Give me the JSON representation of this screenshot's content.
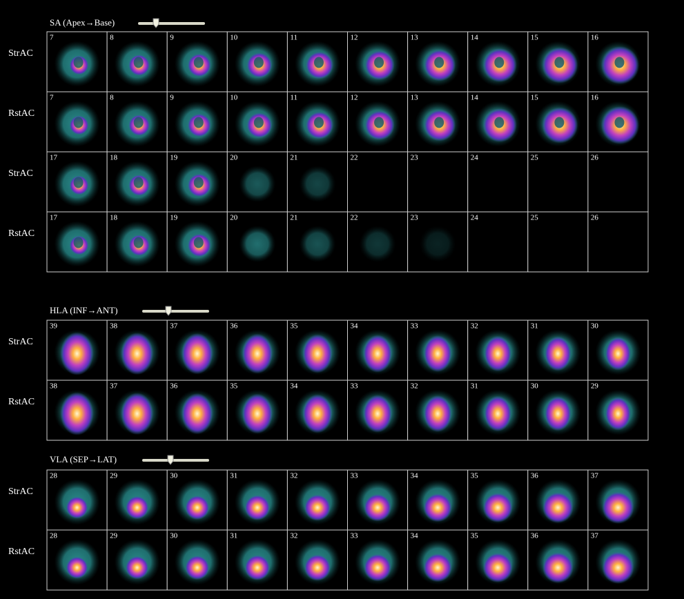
{
  "sections": [
    {
      "title": "SA (Apex→Base)",
      "rows": [
        {
          "label": "StrAC",
          "cells": [
            "7",
            "8",
            "9",
            "10",
            "11",
            "12",
            "13",
            "14",
            "15",
            "16"
          ]
        },
        {
          "label": "RstAC",
          "cells": [
            "7",
            "8",
            "9",
            "10",
            "11",
            "12",
            "13",
            "14",
            "15",
            "16"
          ]
        },
        {
          "label": "StrAC",
          "cells": [
            "17",
            "18",
            "19",
            "20",
            "21",
            "22",
            "23",
            "24",
            "25",
            "26"
          ]
        },
        {
          "label": "RstAC",
          "cells": [
            "17",
            "18",
            "19",
            "20",
            "21",
            "22",
            "23",
            "24",
            "25",
            "26"
          ]
        }
      ]
    },
    {
      "title": "HLA (INF→ANT)",
      "rows": [
        {
          "label": "StrAC",
          "cells": [
            "39",
            "38",
            "37",
            "36",
            "35",
            "34",
            "33",
            "32",
            "31",
            "30"
          ]
        },
        {
          "label": "RstAC",
          "cells": [
            "38",
            "37",
            "36",
            "35",
            "34",
            "33",
            "32",
            "31",
            "30",
            "29"
          ]
        }
      ]
    },
    {
      "title": "VLA (SEP→LAT)",
      "rows": [
        {
          "label": "StrAC",
          "cells": [
            "28",
            "29",
            "30",
            "31",
            "32",
            "33",
            "34",
            "35",
            "36",
            "37"
          ]
        },
        {
          "label": "RstAC",
          "cells": [
            "28",
            "29",
            "30",
            "31",
            "32",
            "33",
            "34",
            "35",
            "36",
            "37"
          ]
        }
      ]
    }
  ]
}
